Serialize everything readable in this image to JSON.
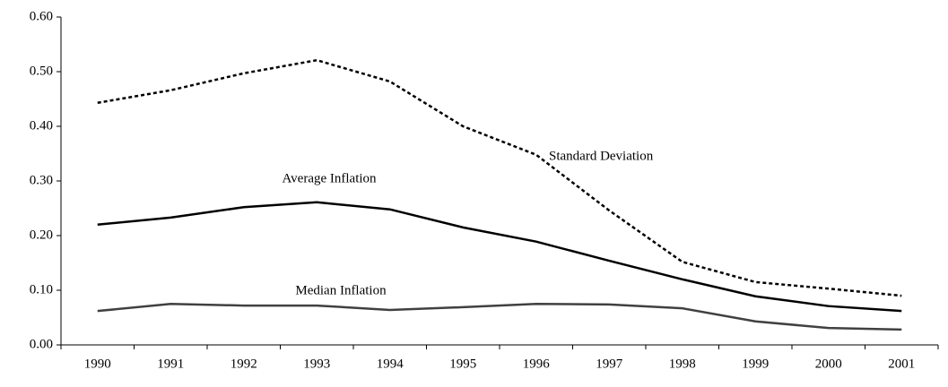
{
  "chart_data": {
    "type": "line",
    "categories": [
      "1990",
      "1991",
      "1992",
      "1993",
      "1994",
      "1995",
      "1996",
      "1997",
      "1998",
      "1999",
      "2000",
      "2001"
    ],
    "series": [
      {
        "name": "Standard Deviation",
        "color": "#000000",
        "dash": true,
        "values": [
          0.443,
          0.466,
          0.497,
          0.521,
          0.482,
          0.4,
          0.348,
          0.246,
          0.152,
          0.115,
          0.103,
          0.09
        ]
      },
      {
        "name": "Average Inflation",
        "color": "#000000",
        "dash": false,
        "values": [
          0.22,
          0.233,
          0.252,
          0.261,
          0.248,
          0.215,
          0.189,
          0.154,
          0.12,
          0.089,
          0.071,
          0.062
        ]
      },
      {
        "name": "Median Inflation",
        "color": "#404040",
        "dash": false,
        "values": [
          0.062,
          0.075,
          0.072,
          0.072,
          0.064,
          0.069,
          0.075,
          0.074,
          0.067,
          0.043,
          0.031,
          0.028
        ]
      }
    ],
    "ylim": [
      0,
      0.6
    ],
    "yticks": [
      {
        "value": 0,
        "label": "0.00"
      },
      {
        "value": 0.1,
        "label": "0.10"
      },
      {
        "value": 0.2,
        "label": "0.20"
      },
      {
        "value": 0.3,
        "label": "0.30"
      },
      {
        "value": 0.4,
        "label": "0.40"
      },
      {
        "value": 0.5,
        "label": "0.50"
      },
      {
        "value": 0.6,
        "label": "0.60"
      }
    ],
    "grid": false
  }
}
